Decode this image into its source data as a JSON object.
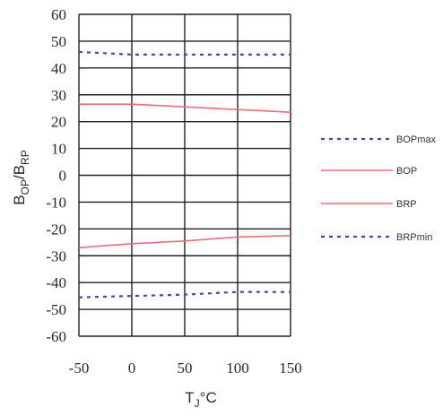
{
  "chart_data": {
    "type": "line",
    "x": [
      -50,
      0,
      50,
      100,
      150
    ],
    "xlim": [
      -50,
      150
    ],
    "ylim": [
      -60,
      60
    ],
    "xticks": [
      -50,
      0,
      50,
      100,
      150
    ],
    "yticks": [
      60,
      50,
      40,
      30,
      20,
      10,
      0,
      -10,
      -20,
      -30,
      -40,
      -50,
      -60
    ],
    "grid": true,
    "legend_position": "right",
    "xlabel": {
      "main": "T",
      "sub": "J",
      "rest": "°C"
    },
    "ylabel": {
      "b1": "B",
      "s1": "OP",
      "mid": "/B",
      "s2": "RP"
    },
    "series": [
      {
        "name": "BOPmax",
        "values": [
          46,
          45,
          45,
          45,
          45
        ],
        "color": "#3b4fb0",
        "style": "dotted"
      },
      {
        "name": "BOP",
        "values": [
          26.5,
          26.5,
          25.5,
          24.5,
          23.5
        ],
        "color": "#f06a7a",
        "style": "solid"
      },
      {
        "name": "BRP",
        "values": [
          -27,
          -25.5,
          -24.5,
          -23,
          -22.5
        ],
        "color": "#f06a7a",
        "style": "solid"
      },
      {
        "name": "BRPmin",
        "values": [
          -45.5,
          -45,
          -44.5,
          -43.5,
          -43.5
        ],
        "color": "#3b4fb0",
        "style": "dotted"
      }
    ]
  }
}
